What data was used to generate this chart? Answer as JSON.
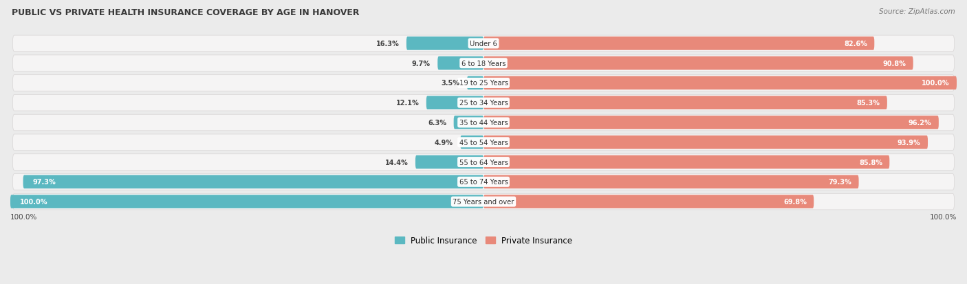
{
  "title": "PUBLIC VS PRIVATE HEALTH INSURANCE COVERAGE BY AGE IN HANOVER",
  "source": "Source: ZipAtlas.com",
  "categories": [
    "Under 6",
    "6 to 18 Years",
    "19 to 25 Years",
    "25 to 34 Years",
    "35 to 44 Years",
    "45 to 54 Years",
    "55 to 64 Years",
    "65 to 74 Years",
    "75 Years and over"
  ],
  "public_values": [
    16.3,
    9.7,
    3.5,
    12.1,
    6.3,
    4.9,
    14.4,
    97.3,
    100.0
  ],
  "private_values": [
    82.6,
    90.8,
    100.0,
    85.3,
    96.2,
    93.9,
    85.8,
    79.3,
    69.8
  ],
  "public_color": "#5bb8c1",
  "private_color": "#e8897a",
  "bg_color": "#ebebeb",
  "row_bg_color": "#f5f4f4",
  "row_border_color": "#d8d5d5",
  "title_color": "#3a3a3a",
  "bar_height": 0.68,
  "figsize": [
    14.06,
    4.14
  ],
  "dpi": 100
}
